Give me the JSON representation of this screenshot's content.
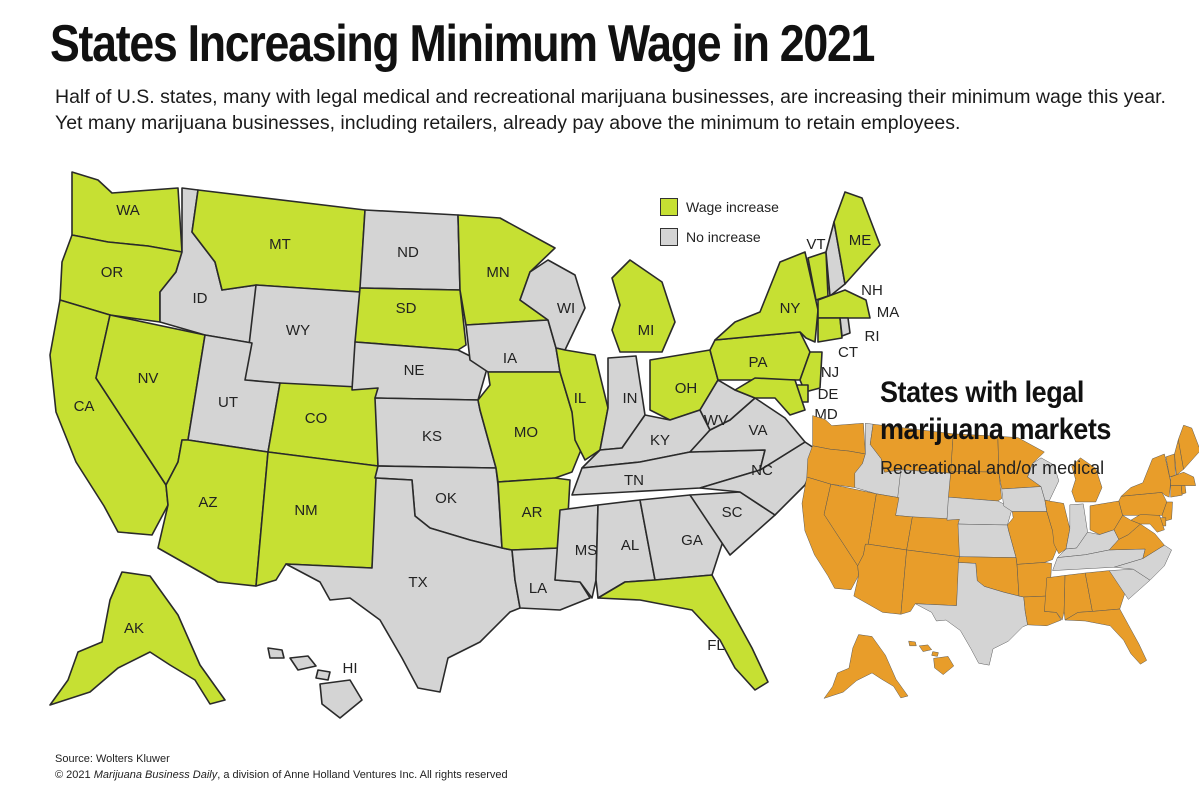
{
  "title": "States Increasing Minimum Wage in 2021",
  "subtitle": "Half of U.S. states, many with legal medical and recreational marijuana businesses, are increasing their minimum wage this year. Yet many marijuana businesses, including retailers, already pay above the minimum to retain employees.",
  "legend": {
    "increase_label": "Wage increase",
    "no_increase_label": "No increase",
    "colors": {
      "increase": "#c6e033",
      "no_increase": "#d4d4d4",
      "legal": "#e89d2a"
    }
  },
  "states": [
    {
      "abbr": "WA",
      "status": "increase",
      "legal": true
    },
    {
      "abbr": "OR",
      "status": "increase",
      "legal": true
    },
    {
      "abbr": "CA",
      "status": "increase",
      "legal": true
    },
    {
      "abbr": "NV",
      "status": "increase",
      "legal": true
    },
    {
      "abbr": "ID",
      "status": "none",
      "legal": false
    },
    {
      "abbr": "MT",
      "status": "increase",
      "legal": true
    },
    {
      "abbr": "WY",
      "status": "none",
      "legal": false
    },
    {
      "abbr": "UT",
      "status": "none",
      "legal": true
    },
    {
      "abbr": "AZ",
      "status": "increase",
      "legal": true
    },
    {
      "abbr": "CO",
      "status": "increase",
      "legal": true
    },
    {
      "abbr": "NM",
      "status": "increase",
      "legal": true
    },
    {
      "abbr": "ND",
      "status": "none",
      "legal": true
    },
    {
      "abbr": "SD",
      "status": "increase",
      "legal": true
    },
    {
      "abbr": "NE",
      "status": "none",
      "legal": false
    },
    {
      "abbr": "KS",
      "status": "none",
      "legal": false
    },
    {
      "abbr": "OK",
      "status": "none",
      "legal": true
    },
    {
      "abbr": "TX",
      "status": "none",
      "legal": false
    },
    {
      "abbr": "MN",
      "status": "increase",
      "legal": true
    },
    {
      "abbr": "IA",
      "status": "none",
      "legal": false
    },
    {
      "abbr": "MO",
      "status": "increase",
      "legal": true
    },
    {
      "abbr": "AR",
      "status": "increase",
      "legal": true
    },
    {
      "abbr": "LA",
      "status": "none",
      "legal": true
    },
    {
      "abbr": "WI",
      "status": "none",
      "legal": false
    },
    {
      "abbr": "IL",
      "status": "increase",
      "legal": true
    },
    {
      "abbr": "MI",
      "status": "increase",
      "legal": true
    },
    {
      "abbr": "IN",
      "status": "none",
      "legal": false
    },
    {
      "abbr": "OH",
      "status": "increase",
      "legal": true
    },
    {
      "abbr": "KY",
      "status": "none",
      "legal": false
    },
    {
      "abbr": "TN",
      "status": "none",
      "legal": false
    },
    {
      "abbr": "MS",
      "status": "none",
      "legal": true
    },
    {
      "abbr": "AL",
      "status": "none",
      "legal": true
    },
    {
      "abbr": "GA",
      "status": "none",
      "legal": true
    },
    {
      "abbr": "FL",
      "status": "increase",
      "legal": true
    },
    {
      "abbr": "SC",
      "status": "none",
      "legal": false
    },
    {
      "abbr": "NC",
      "status": "none",
      "legal": false
    },
    {
      "abbr": "VA",
      "status": "none",
      "legal": true
    },
    {
      "abbr": "WV",
      "status": "none",
      "legal": true
    },
    {
      "abbr": "PA",
      "status": "increase",
      "legal": true
    },
    {
      "abbr": "NY",
      "status": "increase",
      "legal": true
    },
    {
      "abbr": "VT",
      "status": "increase",
      "legal": true
    },
    {
      "abbr": "NH",
      "status": "none",
      "legal": true
    },
    {
      "abbr": "ME",
      "status": "increase",
      "legal": true
    },
    {
      "abbr": "MA",
      "status": "increase",
      "legal": true
    },
    {
      "abbr": "CT",
      "status": "increase",
      "legal": true
    },
    {
      "abbr": "RI",
      "status": "none",
      "legal": true
    },
    {
      "abbr": "NJ",
      "status": "increase",
      "legal": true
    },
    {
      "abbr": "DE",
      "status": "increase",
      "legal": true
    },
    {
      "abbr": "MD",
      "status": "increase",
      "legal": true
    },
    {
      "abbr": "AK",
      "status": "increase",
      "legal": true
    },
    {
      "abbr": "HI",
      "status": "none",
      "legal": true
    }
  ],
  "inset": {
    "title_line1": "States with legal",
    "title_line2": "marijuana markets",
    "subtitle": "Recreational and/or medical"
  },
  "source": "Source: Wolters Kluwer",
  "copyright_prefix": "© 2021 ",
  "copyright_publication": "Marijuana Business Daily",
  "copyright_suffix": ", a division of Anne Holland Ventures Inc. All rights reserved"
}
